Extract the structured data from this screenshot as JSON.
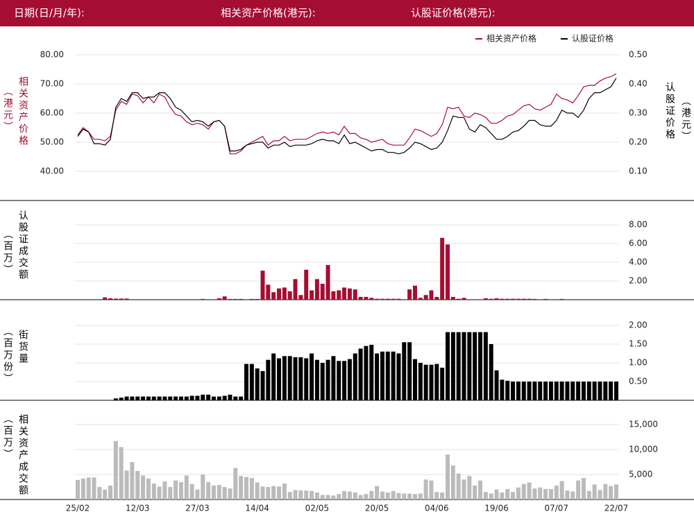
{
  "header": {
    "date_label": "日期(日/月/年):",
    "underlying_label": "相关资产价格(港元):",
    "warrant_label": "认股证价格(港元):"
  },
  "chart_data": [
    {
      "type": "line",
      "legend": "top-right",
      "grid": true,
      "ylabel": [
        "相关资产价格",
        "（港元）"
      ],
      "ylabel_color": "#a50d33",
      "y2label": [
        "认股证价格",
        "（港元）"
      ],
      "ylim": [
        36,
        82
      ],
      "yticks": [
        {
          "value": 40,
          "label": "40.00"
        },
        {
          "value": 50,
          "label": "50.00"
        },
        {
          "value": 60,
          "label": "60.00"
        },
        {
          "value": 70,
          "label": "70.00"
        },
        {
          "value": 80,
          "label": "80.00"
        }
      ],
      "y2lim": [
        0.06,
        0.52
      ],
      "y2ticks": [
        {
          "value": 0.1,
          "label": "0.10"
        },
        {
          "value": 0.2,
          "label": "0.20"
        },
        {
          "value": 0.3,
          "label": "0.30"
        },
        {
          "value": 0.4,
          "label": "0.40"
        },
        {
          "value": 0.5,
          "label": "0.50"
        }
      ],
      "series": [
        {
          "name": "相关资产价格",
          "color": "#a50d33",
          "axis": "y",
          "values": [
            52.5,
            55,
            53.5,
            51,
            51,
            50.5,
            52,
            61,
            64,
            63,
            66.5,
            66,
            63.5,
            65.5,
            63.5,
            66.5,
            65.5,
            62,
            59.5,
            59,
            57,
            56,
            56.5,
            56,
            54.5,
            57,
            57.5,
            55.5,
            46,
            46,
            47,
            49,
            50,
            51,
            52,
            49,
            50.5,
            50.5,
            52,
            50.5,
            51,
            51,
            51,
            52,
            53,
            53.5,
            53,
            53.5,
            52.5,
            55.5,
            53,
            53,
            51.5,
            51,
            50,
            50.5,
            51,
            49.5,
            49,
            49,
            49,
            51.5,
            54.5,
            54,
            53,
            52,
            53,
            56,
            62,
            61.5,
            62,
            59,
            58.5,
            60,
            59.5,
            58.5,
            56.5,
            56.5,
            57.5,
            59,
            59.5,
            61,
            62.5,
            63,
            61.5,
            61,
            62,
            63,
            66.5,
            65,
            64.5,
            63.5,
            66,
            69,
            69.5,
            69.5,
            71,
            72,
            72.5,
            73.5
          ]
        },
        {
          "name": "认股证价格",
          "color": "#000000",
          "axis": "y2",
          "values": [
            0.22,
            0.245,
            0.235,
            0.195,
            0.195,
            0.19,
            0.21,
            0.32,
            0.35,
            0.34,
            0.37,
            0.37,
            0.35,
            0.355,
            0.355,
            0.37,
            0.37,
            0.35,
            0.32,
            0.31,
            0.29,
            0.27,
            0.275,
            0.27,
            0.255,
            0.27,
            0.275,
            0.255,
            0.17,
            0.17,
            0.175,
            0.19,
            0.195,
            0.2,
            0.2,
            0.18,
            0.19,
            0.19,
            0.2,
            0.185,
            0.19,
            0.19,
            0.19,
            0.195,
            0.205,
            0.21,
            0.205,
            0.205,
            0.195,
            0.225,
            0.195,
            0.2,
            0.19,
            0.18,
            0.17,
            0.175,
            0.175,
            0.165,
            0.165,
            0.16,
            0.165,
            0.18,
            0.2,
            0.195,
            0.185,
            0.175,
            0.18,
            0.2,
            0.24,
            0.29,
            0.285,
            0.285,
            0.245,
            0.235,
            0.26,
            0.25,
            0.23,
            0.21,
            0.21,
            0.22,
            0.235,
            0.24,
            0.255,
            0.275,
            0.275,
            0.26,
            0.255,
            0.255,
            0.275,
            0.31,
            0.3,
            0.3,
            0.285,
            0.31,
            0.35,
            0.37,
            0.37,
            0.38,
            0.39,
            0.42
          ]
        }
      ]
    },
    {
      "type": "bar",
      "grid": true,
      "ylabel": [
        "认股证成交额",
        "（百万）"
      ],
      "color": "#a50d33",
      "ylim": [
        0,
        8.5
      ],
      "yticks": [
        {
          "value": 2,
          "label": "2.00"
        },
        {
          "value": 4,
          "label": "4.00"
        },
        {
          "value": 6,
          "label": "6.00"
        },
        {
          "value": 8,
          "label": "8.00"
        }
      ],
      "values": [
        0,
        0,
        0,
        0,
        0,
        0.25,
        0.15,
        0.12,
        0.12,
        0.12,
        0,
        0,
        0,
        0,
        0,
        0,
        0,
        0,
        0,
        0,
        0,
        0,
        0,
        0.08,
        0,
        0,
        0.15,
        0.35,
        0.08,
        0.08,
        0.08,
        0,
        0.08,
        0.08,
        3.1,
        1.6,
        0.8,
        1.2,
        1.3,
        0.9,
        2.2,
        0.5,
        3.2,
        1.0,
        2.2,
        1.7,
        3.7,
        0.9,
        1.0,
        1.3,
        1.2,
        1.1,
        0.3,
        0.3,
        0.2,
        0.1,
        0.1,
        0.1,
        0.1,
        0.1,
        0,
        1.1,
        1.5,
        0.2,
        0.5,
        1.0,
        0.3,
        6.6,
        5.9,
        0.3,
        0.1,
        0.2,
        0,
        0,
        0,
        0.15,
        0.1,
        0.15,
        0.1,
        0.1,
        0.1,
        0.1,
        0.1,
        0.1,
        0.08,
        0,
        0.08,
        0,
        0,
        0.08,
        0,
        0,
        0,
        0,
        0,
        0,
        0,
        0,
        0,
        0
      ]
    },
    {
      "type": "bar",
      "grid": true,
      "ylabel": [
        "街货量",
        "（百万份）"
      ],
      "color": "#000000",
      "ylim": [
        0,
        2.2
      ],
      "yticks": [
        {
          "value": 0.5,
          "label": "0.50"
        },
        {
          "value": 1,
          "label": "1.00"
        },
        {
          "value": 1.5,
          "label": "1.50"
        },
        {
          "value": 2,
          "label": "2.00"
        }
      ],
      "values": [
        0,
        0,
        0,
        0,
        0,
        0,
        0,
        0.05,
        0.07,
        0.1,
        0.1,
        0.1,
        0.1,
        0.1,
        0.1,
        0.1,
        0.1,
        0.1,
        0.1,
        0.1,
        0.1,
        0.12,
        0.12,
        0.15,
        0.15,
        0.1,
        0.1,
        0.12,
        0.15,
        0.1,
        0.1,
        0.97,
        0.97,
        0.85,
        0.78,
        1.08,
        1.25,
        1.12,
        1.18,
        1.18,
        1.15,
        1.15,
        1.12,
        1.25,
        1.08,
        1.0,
        1.08,
        1.18,
        1.05,
        1.05,
        1.1,
        1.25,
        1.38,
        1.45,
        1.48,
        1.25,
        1.3,
        1.3,
        1.3,
        1.25,
        1.55,
        1.55,
        1.1,
        1.0,
        0.95,
        0.95,
        0.97,
        0.87,
        1.82,
        1.82,
        1.82,
        1.82,
        1.82,
        1.82,
        1.82,
        1.82,
        1.5,
        0.8,
        0.55,
        0.52,
        0.5,
        0.5,
        0.5,
        0.5,
        0.5,
        0.5,
        0.5,
        0.5,
        0.5,
        0.5,
        0.5,
        0.5,
        0.5,
        0.5,
        0.5,
        0.5,
        0.5,
        0.5,
        0.5,
        0.5
      ]
    },
    {
      "type": "bar",
      "grid": true,
      "ylabel": [
        "相关资产成交额",
        "（百万）"
      ],
      "color": "#bbbbbb",
      "ylim": [
        0,
        16500
      ],
      "yticks": [
        {
          "value": 5000,
          "label": "5,000"
        },
        {
          "value": 10000,
          "label": "10,000"
        },
        {
          "value": 15000,
          "label": "15,000"
        }
      ],
      "categories": [
        "25/02",
        null,
        null,
        null,
        null,
        null,
        null,
        null,
        null,
        null,
        null,
        "12/03",
        null,
        null,
        null,
        null,
        null,
        null,
        null,
        null,
        null,
        null,
        "27/03",
        null,
        null,
        null,
        null,
        null,
        null,
        null,
        null,
        null,
        null,
        "14/04",
        null,
        null,
        null,
        null,
        null,
        null,
        null,
        null,
        null,
        null,
        "02/05",
        null,
        null,
        null,
        null,
        null,
        null,
        null,
        null,
        null,
        null,
        "20/05",
        null,
        null,
        null,
        null,
        null,
        null,
        null,
        null,
        null,
        null,
        "04/06",
        null,
        null,
        null,
        null,
        null,
        null,
        null,
        null,
        null,
        null,
        "19/06",
        null,
        null,
        null,
        null,
        null,
        null,
        null,
        null,
        null,
        null,
        "07/07",
        null,
        null,
        null,
        null,
        null,
        null,
        null,
        null,
        null,
        null,
        "22/07"
      ],
      "values": [
        3900,
        4200,
        4400,
        4400,
        2500,
        2000,
        2800,
        11700,
        10500,
        5800,
        7500,
        5700,
        4800,
        4200,
        3200,
        2600,
        3600,
        2500,
        3800,
        3500,
        4800,
        3100,
        2000,
        5000,
        3500,
        2800,
        2900,
        2500,
        2200,
        6300,
        4700,
        4500,
        4300,
        3400,
        2600,
        2500,
        2700,
        2600,
        3200,
        1500,
        1900,
        1800,
        1800,
        1700,
        1400,
        900,
        900,
        800,
        1100,
        1700,
        1600,
        1400,
        900,
        1100,
        1700,
        2700,
        1600,
        1400,
        1700,
        1300,
        1200,
        1200,
        1100,
        1200,
        4000,
        3800,
        1500,
        1400,
        9000,
        6800,
        5200,
        4000,
        4700,
        2800,
        3800,
        1500,
        1200,
        2000,
        1400,
        2100,
        1500,
        2400,
        3100,
        3400,
        2200,
        2400,
        2100,
        2100,
        2800,
        3700,
        1800,
        1600,
        3800,
        4300,
        1700,
        3000,
        1900,
        3100,
        2700,
        3000
      ]
    }
  ]
}
